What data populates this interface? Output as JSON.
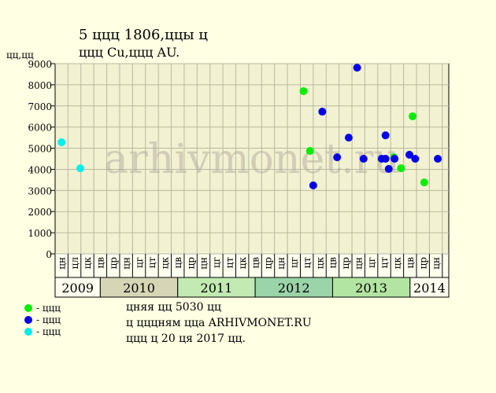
{
  "chart_data": {
    "type": "scatter",
    "title": "5 ццц 1806,ццы ц",
    "subtitle": "ццц Cu,ццц AU.",
    "y_label": "цц,цц",
    "watermark": "arhivmonet.ru",
    "xlim": [
      0,
      61
    ],
    "ylim": [
      0,
      9000
    ],
    "yticks": [
      0,
      1000,
      2000,
      3000,
      4000,
      5000,
      6000,
      7000,
      8000,
      9000
    ],
    "xticks": [
      {
        "value": 2,
        "label": "цн"
      },
      {
        "value": 4,
        "label": "цл"
      },
      {
        "value": 6,
        "label": "цк"
      },
      {
        "value": 8,
        "label": "цв"
      },
      {
        "value": 10,
        "label": "цр"
      },
      {
        "value": 12,
        "label": "цн"
      },
      {
        "value": 14,
        "label": "цг"
      },
      {
        "value": 16,
        "label": "цт"
      },
      {
        "value": 18,
        "label": "цк"
      },
      {
        "value": 20,
        "label": "цв"
      },
      {
        "value": 22,
        "label": "цр"
      },
      {
        "value": 24,
        "label": "цн"
      },
      {
        "value": 26,
        "label": "цг"
      },
      {
        "value": 28,
        "label": "цт"
      },
      {
        "value": 30,
        "label": "цк"
      },
      {
        "value": 32,
        "label": "цв"
      },
      {
        "value": 34,
        "label": "цр"
      },
      {
        "value": 36,
        "label": "цн"
      },
      {
        "value": 38,
        "label": "цг"
      },
      {
        "value": 40,
        "label": "цт"
      },
      {
        "value": 42,
        "label": "цк"
      },
      {
        "value": 44,
        "label": "цв"
      },
      {
        "value": 46,
        "label": "цр"
      },
      {
        "value": 48,
        "label": "цн"
      },
      {
        "value": 50,
        "label": "цг"
      },
      {
        "value": 52,
        "label": "цт"
      },
      {
        "value": 54,
        "label": "цк"
      },
      {
        "value": 56,
        "label": "цв"
      },
      {
        "value": 58,
        "label": "цр"
      },
      {
        "value": 60,
        "label": "цн"
      }
    ],
    "grid": true,
    "years": [
      {
        "label": "2009",
        "start": 0,
        "end": 7,
        "color": "#fffff0"
      },
      {
        "label": "2010",
        "start": 7,
        "end": 19,
        "color": "#d6d6b6"
      },
      {
        "label": "2011",
        "start": 19,
        "end": 31,
        "color": "#c2eab2"
      },
      {
        "label": "2012",
        "start": 31,
        "end": 43,
        "color": "#9ad4a8"
      },
      {
        "label": "2013",
        "start": 43,
        "end": 55,
        "color": "#b2e4a2"
      },
      {
        "label": "2014",
        "start": 55,
        "end": 61,
        "color": "#fffff0"
      }
    ],
    "series": [
      {
        "name": "- ццц",
        "color": "#00ee00",
        "x": [
          38.5,
          39.5,
          52.5,
          53.6,
          55.4,
          57.2
        ],
        "values": [
          7700,
          4870,
          4570,
          4050,
          6510,
          3380
        ]
      },
      {
        "name": "- ццц",
        "color": "#0000ee",
        "x": [
          40.0,
          41.4,
          43.7,
          45.5,
          46.8,
          47.8,
          50.6,
          51.2,
          51.2,
          51.7,
          52.6,
          54.9,
          55.8,
          59.3
        ],
        "values": [
          3240,
          6730,
          4570,
          5500,
          8810,
          4500,
          4500,
          5610,
          4500,
          4020,
          4500,
          4690,
          4500,
          4500
        ]
      },
      {
        "name": "- ццц",
        "color": "#00eeee",
        "x": [
          1.0,
          3.9
        ],
        "values": [
          5280,
          4050
        ]
      }
    ],
    "notes": [
      "цняя цц 5030 цц",
      "ц цццням цца ARHIVMONET.RU",
      "ццц ц 20 ця 2017 цц."
    ]
  }
}
